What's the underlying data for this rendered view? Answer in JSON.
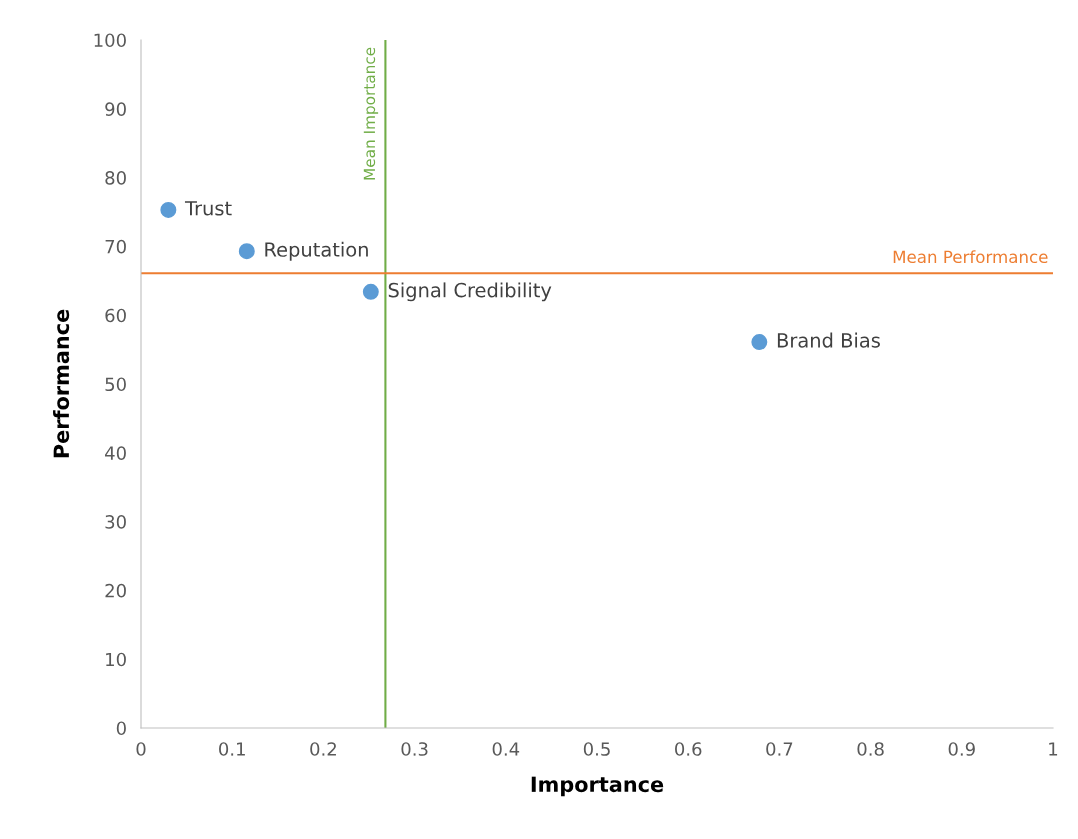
{
  "chart_data": {
    "type": "scatter",
    "xlabel": "Importance",
    "ylabel": "Performance",
    "x": [
      0.03,
      0.116,
      0.252,
      0.678
    ],
    "series": [
      {
        "color": "#5b9bd5",
        "values": [
          75.3,
          69.3,
          63.4,
          56.1
        ]
      }
    ],
    "marker": "circle",
    "annotations": [
      {
        "text": "Trust",
        "x": 0.03,
        "y": 75.3
      },
      {
        "text": "Reputation",
        "x": 0.116,
        "y": 69.3
      },
      {
        "text": "Signal Credibility",
        "x": 0.252,
        "y": 63.4
      },
      {
        "text": "Brand Bias",
        "x": 0.678,
        "y": 56.1
      }
    ],
    "ref_lines": [
      {
        "axis": "x",
        "value": 0.268,
        "label": "Mean Importance",
        "color": "#70ad47"
      },
      {
        "axis": "y",
        "value": 66.1,
        "label": "Mean Performance",
        "color": "#ed7d31"
      }
    ],
    "xlim": [
      0,
      1
    ],
    "ylim": [
      0,
      100
    ],
    "xticks": [
      0,
      0.1,
      0.2,
      0.3,
      0.4,
      0.5,
      0.6,
      0.7,
      0.8,
      0.9,
      1
    ],
    "yticks": [
      0,
      10,
      20,
      30,
      40,
      50,
      60,
      70,
      80,
      90,
      100
    ],
    "grid": false,
    "legend": false
  }
}
